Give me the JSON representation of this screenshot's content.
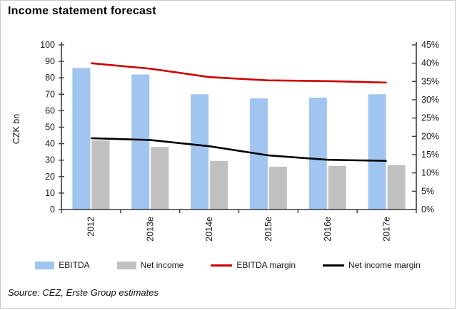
{
  "title": "Income statement forecast",
  "source_note": "Source: CEZ, Erste Group estimates",
  "chart_data": {
    "type": "combo-bar-line",
    "categories": [
      "2012",
      "2013e",
      "2014e",
      "2015e",
      "2016e",
      "2017e"
    ],
    "series": [
      {
        "name": "EBITDA",
        "type": "bar",
        "axis": "left",
        "color": "#A0C5F0",
        "values": [
          86,
          82,
          70,
          67.5,
          68,
          70
        ]
      },
      {
        "name": "Net income",
        "type": "bar",
        "axis": "left",
        "color": "#C0C0C0",
        "values": [
          42,
          38,
          29.5,
          26,
          26.5,
          27
        ]
      },
      {
        "name": "EBITDA margin",
        "type": "line",
        "axis": "right",
        "color": "#CC0000",
        "values": [
          40,
          38.5,
          36.2,
          35.3,
          35.1,
          34.7
        ]
      },
      {
        "name": "Net income margin",
        "type": "line",
        "axis": "right",
        "color": "#000000",
        "values": [
          19.5,
          19.0,
          17.3,
          14.8,
          13.6,
          13.3
        ]
      }
    ],
    "left_axis": {
      "label": "CZK bn",
      "min": 0,
      "max": 100,
      "step": 10
    },
    "right_axis": {
      "min": 0,
      "max": 45,
      "step": 5,
      "suffix": "%"
    },
    "grid": false,
    "legend_position": "bottom",
    "axis_color": "#3c3c3c",
    "text_color": "#1a1a1a"
  }
}
